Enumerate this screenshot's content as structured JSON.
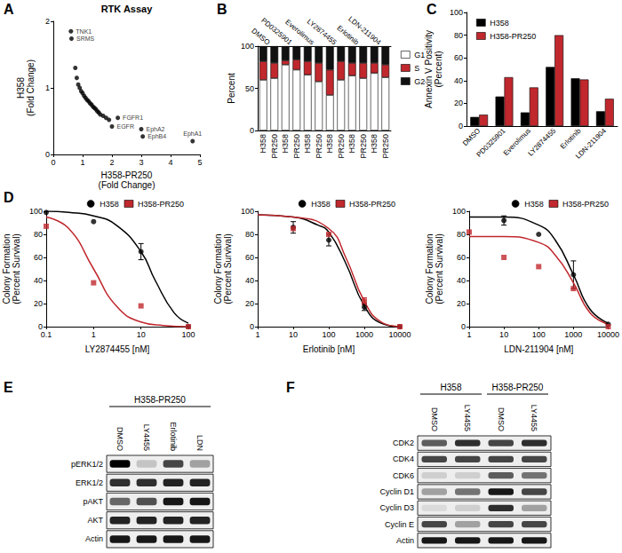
{
  "chart_data": [
    {
      "panel": "A",
      "type": "scatter",
      "title": "RTK Assay",
      "xlabel": "H358-PR250\n(Fold Change)",
      "ylabel": "H358\n(Fold Change)",
      "xlim": [
        0,
        5
      ],
      "xticks": [
        0,
        1,
        2,
        3,
        4,
        5
      ],
      "ylim": [
        0,
        2
      ],
      "yticks": [
        0,
        1,
        2
      ],
      "color": "#000000",
      "marker": "circle",
      "x": [
        0.6,
        0.62,
        0.75,
        0.8,
        0.85,
        0.9,
        0.95,
        1.0,
        1.05,
        1.1,
        1.15,
        1.2,
        1.25,
        1.3,
        1.35,
        1.4,
        1.45,
        1.5,
        1.55,
        1.6,
        1.7,
        1.8,
        1.9,
        2.2,
        2.0,
        3.0,
        3.05,
        4.75
      ],
      "values": [
        1.85,
        1.74,
        1.3,
        1.15,
        1.05,
        1.0,
        0.95,
        0.92,
        0.88,
        0.85,
        0.82,
        0.8,
        0.77,
        0.75,
        0.72,
        0.7,
        0.68,
        0.65,
        0.63,
        0.6,
        0.58,
        0.55,
        0.52,
        0.55,
        0.42,
        0.38,
        0.27,
        0.2
      ],
      "point_labels": [
        "TNK1",
        "SRMS",
        null,
        null,
        null,
        null,
        null,
        null,
        null,
        null,
        null,
        null,
        null,
        null,
        null,
        null,
        null,
        null,
        null,
        null,
        null,
        null,
        null,
        "FGFR1",
        "EGFR",
        "EphA2",
        "EphB4",
        "EphA1"
      ]
    },
    {
      "panel": "B",
      "type": "bar",
      "stacked": true,
      "ylabel": "Percent",
      "categories": [
        "H358",
        "PR250",
        "H358",
        "PR250",
        "H358",
        "PR250",
        "H358",
        "PR250",
        "H358",
        "PR250",
        "H358",
        "PR250"
      ],
      "groups": [
        "DMSO",
        "PD0325901",
        "Everolimus",
        "LY2874455",
        "Erlotinib",
        "LDN-211904"
      ],
      "ylim": [
        0,
        100
      ],
      "yticks": [
        0,
        50,
        100
      ],
      "legend": "right",
      "series": [
        {
          "name": "G1",
          "color": "#ffffff",
          "values": [
            60,
            62,
            78,
            72,
            66,
            58,
            42,
            60,
            65,
            62,
            68,
            63
          ]
        },
        {
          "name": "S",
          "color": "#c0282d",
          "values": [
            22,
            18,
            5,
            12,
            16,
            22,
            30,
            22,
            15,
            18,
            12,
            15
          ]
        },
        {
          "name": "G2",
          "color": "#111111",
          "values": [
            18,
            20,
            17,
            16,
            18,
            20,
            28,
            18,
            20,
            20,
            20,
            22
          ]
        }
      ]
    },
    {
      "panel": "C",
      "type": "bar",
      "ylabel": "Annexin V Positivity\n(Percent)",
      "categories": [
        "DMSO",
        "PD0325901",
        "Everolimus",
        "LY2874455",
        "Erlotinib",
        "LDN-211904"
      ],
      "ylim": [
        0,
        100
      ],
      "yticks": [
        0,
        20,
        40,
        60,
        80,
        100
      ],
      "legend": "upper left",
      "series": [
        {
          "name": "H358",
          "color": "#000000",
          "values": [
            8,
            26,
            12,
            52,
            42,
            13
          ]
        },
        {
          "name": "H358-PR250",
          "color": "#c0282d",
          "values": [
            10,
            43,
            34,
            80,
            41,
            24
          ]
        }
      ]
    },
    {
      "panel": "D",
      "type": "line",
      "log": "x",
      "xlabel": "LY2874455 [nM]",
      "ylabel": "Colony Formation\n(Percent Survival)",
      "xlim": [
        0.1,
        100
      ],
      "xticks": [
        0.1,
        1,
        10,
        100
      ],
      "ylim": [
        0,
        100
      ],
      "yticks": [
        0,
        20,
        40,
        60,
        80,
        100
      ],
      "legend": "upper right",
      "series": [
        {
          "name": "H358",
          "color": "#000000",
          "marker": "circle",
          "x": [
            0.1,
            1,
            10,
            100
          ],
          "values": [
            99,
            91,
            65,
            0
          ],
          "errors": [
            null,
            null,
            7,
            null
          ],
          "fit_x": [
            0.1,
            0.3,
            1,
            3,
            10,
            20,
            50,
            100
          ],
          "fit_values": [
            100,
            99,
            96,
            88,
            65,
            40,
            12,
            3
          ]
        },
        {
          "name": "H358-PR250",
          "color": "#c0282d",
          "marker": "square",
          "x": [
            0.1,
            1,
            10,
            100
          ],
          "values": [
            87,
            38,
            18,
            0
          ],
          "errors": [
            null,
            null,
            null,
            null
          ],
          "fit_x": [
            0.1,
            0.3,
            1,
            3,
            10,
            30,
            100
          ],
          "fit_values": [
            95,
            85,
            50,
            18,
            4,
            1,
            0
          ]
        }
      ]
    },
    {
      "type": "line",
      "log": "x",
      "xlabel": "Erlotinib [nM]",
      "ylabel": "Colony Formation\n(Percent Survival)",
      "xlim": [
        1,
        10000
      ],
      "xticks": [
        1,
        10,
        100,
        1000,
        10000
      ],
      "ylim": [
        0,
        100
      ],
      "yticks": [
        0,
        20,
        40,
        60,
        80,
        100
      ],
      "legend": "upper right",
      "series": [
        {
          "name": "H358",
          "color": "#000000",
          "marker": "circle",
          "x": [
            10,
            100,
            1000,
            10000
          ],
          "values": [
            86,
            75,
            17,
            0
          ],
          "errors": [
            5,
            5,
            3,
            null
          ],
          "fit_x": [
            1,
            10,
            50,
            100,
            300,
            1000,
            3000,
            10000
          ],
          "fit_values": [
            97,
            95,
            88,
            82,
            55,
            18,
            3,
            0
          ]
        },
        {
          "name": "H358-PR250",
          "color": "#c0282d",
          "marker": "square",
          "x": [
            10,
            100,
            1000,
            10000
          ],
          "values": [
            85,
            80,
            22,
            0
          ],
          "errors": [
            null,
            null,
            3,
            null
          ],
          "fit_x": [
            1,
            10,
            100,
            300,
            1000,
            3000,
            10000
          ],
          "fit_values": [
            97,
            95,
            85,
            60,
            22,
            4,
            0
          ]
        }
      ]
    },
    {
      "type": "line",
      "log": "x",
      "xlabel": "LDN-211904 [nM]",
      "ylabel": "Colony Formation\n(Percent Survival)",
      "xlim": [
        1,
        10000
      ],
      "xticks": [
        1,
        10,
        100,
        1000,
        10000
      ],
      "ylim": [
        0,
        100
      ],
      "yticks": [
        0,
        20,
        40,
        60,
        80,
        100
      ],
      "legend": "upper right",
      "series": [
        {
          "name": "H358",
          "color": "#000000",
          "marker": "circle",
          "x": [
            10,
            100,
            1000,
            10000
          ],
          "values": [
            92,
            80,
            45,
            2
          ],
          "errors": [
            4,
            null,
            12,
            null
          ],
          "fit_x": [
            1,
            10,
            100,
            300,
            1000,
            3000,
            10000
          ],
          "fit_values": [
            95,
            95,
            88,
            75,
            45,
            15,
            3
          ]
        },
        {
          "name": "H358-PR250",
          "color": "#c0282d",
          "marker": "square",
          "x": [
            1,
            10,
            100,
            1000,
            10000
          ],
          "values": [
            82,
            60,
            52,
            33,
            0
          ],
          "errors": [
            null,
            null,
            null,
            null,
            null
          ],
          "fit_x": [
            1,
            10,
            100,
            300,
            1000,
            3000,
            10000
          ],
          "fit_values": [
            78,
            78,
            73,
            62,
            38,
            12,
            2
          ]
        }
      ]
    },
    {
      "panel": "E",
      "type": "blot",
      "groups": [
        {
          "label": "H358-PR250",
          "lanes": [
            "DMSO",
            "LY4455",
            "Erlotinib",
            "LDN"
          ]
        }
      ],
      "series": [
        {
          "name": "pERK1/2",
          "values": [
            1,
            0.15,
            0.7,
            0.3
          ]
        },
        {
          "name": "ERK1/2",
          "values": [
            0.8,
            0.8,
            0.85,
            0.85
          ]
        },
        {
          "name": "pAKT",
          "values": [
            0.55,
            0.65,
            0.9,
            0.9
          ]
        },
        {
          "name": "AKT",
          "values": [
            0.85,
            0.85,
            0.85,
            0.85
          ]
        },
        {
          "name": "Actin",
          "values": [
            0.9,
            0.9,
            0.9,
            0.9
          ]
        }
      ]
    },
    {
      "panel": "F",
      "type": "blot",
      "groups": [
        {
          "label": "H358",
          "lanes": [
            "DMSO",
            "LY4455"
          ]
        },
        {
          "label": "H358-PR250",
          "lanes": [
            "DMSO",
            "LY4455"
          ]
        }
      ],
      "series": [
        {
          "name": "CDK2",
          "values": [
            0.6,
            0.8,
            0.7,
            0.8
          ]
        },
        {
          "name": "CDK4",
          "values": [
            0.7,
            0.7,
            0.7,
            0.7
          ]
        },
        {
          "name": "CDK6",
          "values": [
            0.1,
            0.1,
            0.6,
            0.5
          ]
        },
        {
          "name": "Cyclin D1",
          "values": [
            0.3,
            0.5,
            0.9,
            0.7
          ]
        },
        {
          "name": "Cyclin D3",
          "values": [
            0.05,
            0.1,
            0.8,
            0.3
          ]
        },
        {
          "name": "Cyclin E",
          "values": [
            0.7,
            0.3,
            0.7,
            0.7
          ]
        },
        {
          "name": "Actin",
          "values": [
            0.9,
            0.9,
            0.9,
            0.9
          ]
        }
      ]
    }
  ]
}
